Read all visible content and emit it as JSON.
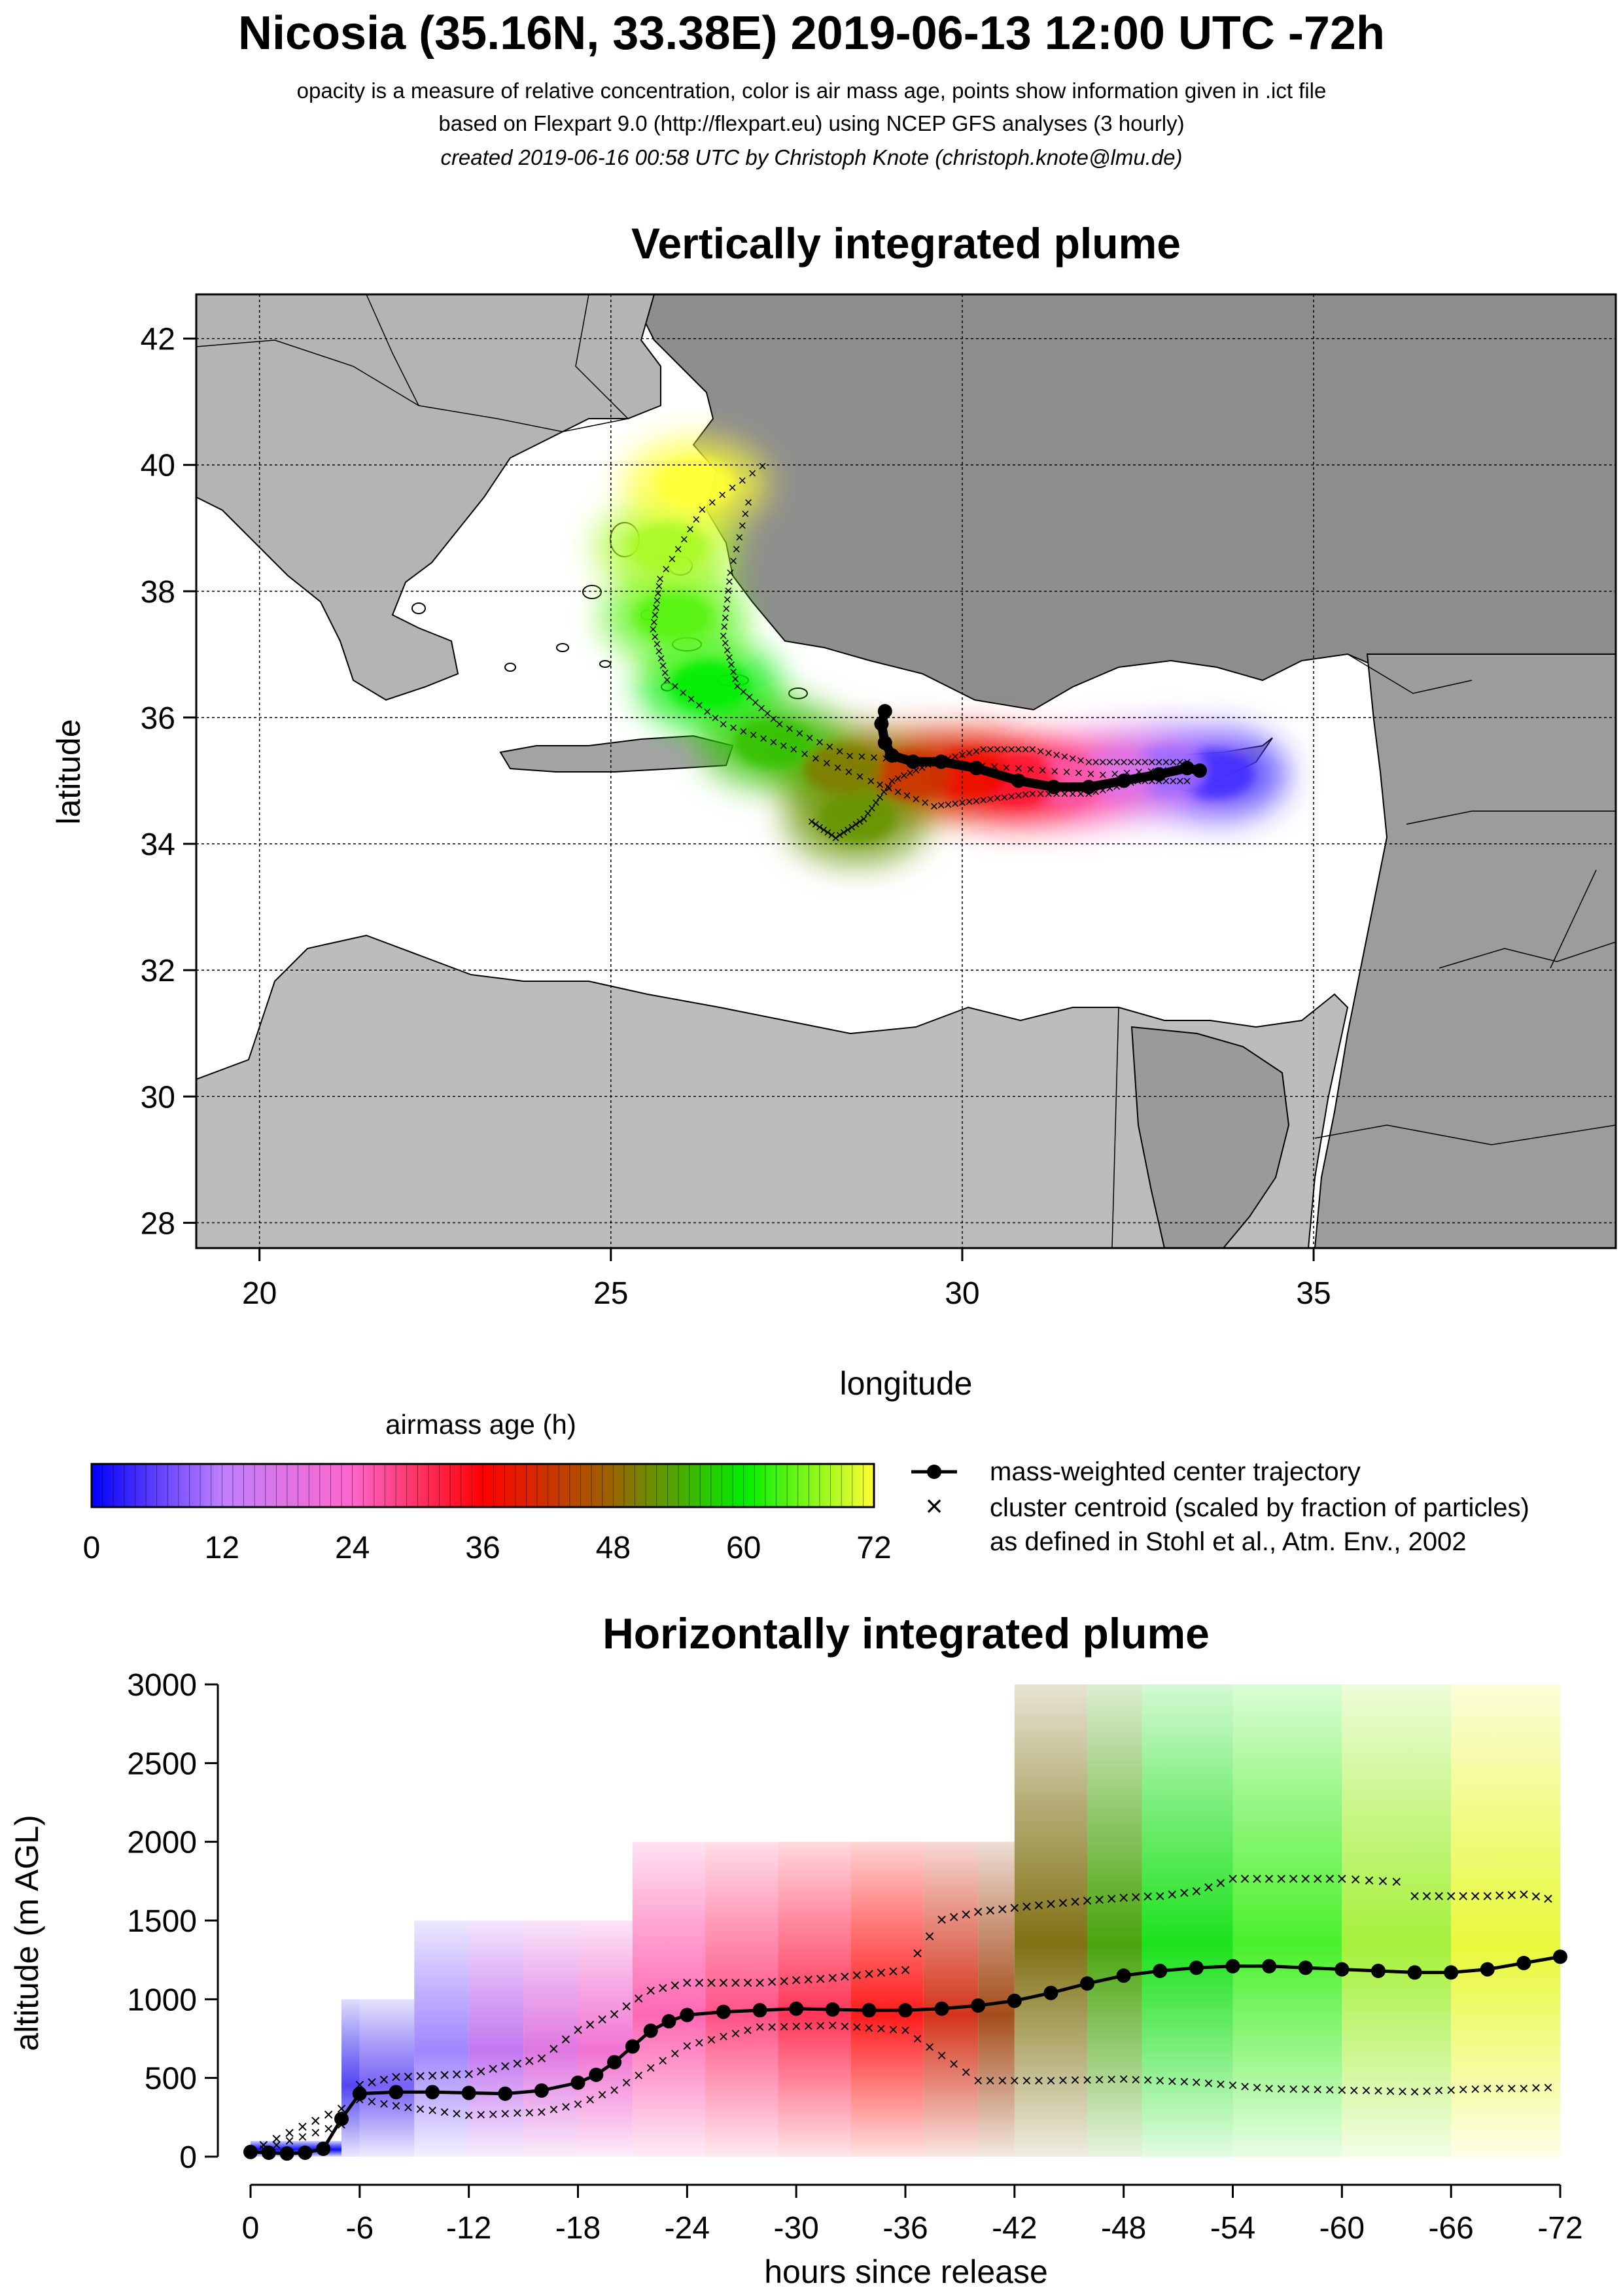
{
  "header": {
    "title": "Nicosia (35.16N, 33.38E) 2019-06-13 12:00 UTC -72h",
    "subtitle1": "opacity is a measure of relative concentration, color is air mass age, points show information given in .ict file",
    "subtitle2": "based on Flexpart 9.0 (http://flexpart.eu) using NCEP GFS analyses (3 hourly)",
    "subtitle3": "created 2019-06-16 00:58 UTC by Christoph Knote (christoph.knote@lmu.de)"
  },
  "legend": {
    "colorbar_title": "airmass age (h)",
    "colorbar_ticks": [
      "0",
      "12",
      "24",
      "36",
      "48",
      "60",
      "72"
    ],
    "colorbar_stops": [
      "#0000ff",
      "#c080ff",
      "#ff66cc",
      "#ff0000",
      "#996600",
      "#00ee00",
      "#ffff33"
    ],
    "line_entry": "mass-weighted center trajectory",
    "cross_entry_1": "cluster centroid (scaled by fraction of particles)",
    "cross_entry_2": "as defined in Stohl et al., Atm. Env., 2002"
  },
  "chart_data": [
    {
      "type": "scatter",
      "title": "Vertically integrated plume",
      "xlabel": "longitude",
      "ylabel": "latitude",
      "xlim": [
        19.1,
        39.3
      ],
      "ylim": [
        27.6,
        42.7
      ],
      "xticks": [
        "20",
        "25",
        "30",
        "35"
      ],
      "yticks": [
        "28",
        "30",
        "32",
        "34",
        "36",
        "38",
        "40",
        "42"
      ],
      "grid": true,
      "center_trajectory": {
        "lon": [
          33.38,
          33.2,
          32.8,
          32.3,
          31.8,
          31.3,
          30.8,
          30.2,
          29.7,
          29.3,
          29.0,
          28.9,
          28.85,
          28.9
        ],
        "lat": [
          35.16,
          35.2,
          35.1,
          35.0,
          34.9,
          34.9,
          35.0,
          35.2,
          35.3,
          35.3,
          35.4,
          35.6,
          35.9,
          36.1
        ]
      },
      "cluster_centroids": [
        {
          "lon": [
            33.2,
            32.5,
            31.8,
            31.0,
            30.3,
            29.6,
            29.0,
            28.6,
            28.2,
            27.8
          ],
          "lat": [
            35.3,
            35.3,
            35.3,
            35.5,
            35.5,
            35.3,
            35.0,
            34.4,
            34.1,
            34.4
          ]
        },
        {
          "lon": [
            33.2,
            32.5,
            31.8,
            31.0,
            30.3,
            29.6,
            28.7,
            27.6,
            26.6,
            25.8,
            25.6,
            25.7,
            26.3,
            27.3
          ],
          "lat": [
            35.0,
            35.0,
            34.8,
            34.8,
            34.7,
            34.6,
            35.0,
            35.5,
            35.9,
            36.6,
            37.4,
            38.2,
            39.3,
            40.1
          ]
        },
        {
          "lon": [
            33.2,
            32.0,
            30.8,
            29.6,
            28.4,
            27.4,
            26.8,
            26.6,
            26.7,
            27.0
          ],
          "lat": [
            35.2,
            35.1,
            35.2,
            35.3,
            35.4,
            35.9,
            36.5,
            37.3,
            38.3,
            39.6
          ]
        }
      ],
      "plume_core": [
        {
          "lon": 33.6,
          "lat": 35.1,
          "age_h": 4
        },
        {
          "lon": 32.9,
          "lat": 35.15,
          "age_h": 10
        },
        {
          "lon": 32.2,
          "lat": 35.1,
          "age_h": 18
        },
        {
          "lon": 31.5,
          "lat": 35.0,
          "age_h": 26
        },
        {
          "lon": 30.8,
          "lat": 35.0,
          "age_h": 33
        },
        {
          "lon": 30.1,
          "lat": 35.1,
          "age_h": 38
        },
        {
          "lon": 29.3,
          "lat": 35.1,
          "age_h": 42
        },
        {
          "lon": 28.3,
          "lat": 35.2,
          "age_h": 50
        },
        {
          "lon": 28.5,
          "lat": 34.4,
          "age_h": 52
        },
        {
          "lon": 27.3,
          "lat": 35.6,
          "age_h": 56
        },
        {
          "lon": 26.4,
          "lat": 36.5,
          "age_h": 60
        },
        {
          "lon": 25.9,
          "lat": 37.6,
          "age_h": 64
        },
        {
          "lon": 25.8,
          "lat": 38.7,
          "age_h": 68
        },
        {
          "lon": 26.2,
          "lat": 39.7,
          "age_h": 72
        }
      ]
    },
    {
      "type": "line",
      "title": "Horizontally integrated plume",
      "xlabel": "hours since release",
      "ylabel": "altitude (m AGL)",
      "xlim": [
        0,
        72
      ],
      "ylim": [
        0,
        3000
      ],
      "xticks": [
        "0",
        "-6",
        "-12",
        "-18",
        "-24",
        "-30",
        "-36",
        "-42",
        "-48",
        "-54",
        "-60",
        "-66",
        "-72"
      ],
      "yticks": [
        "0",
        "500",
        "1000",
        "1500",
        "2000",
        "2500",
        "3000"
      ],
      "center_trajectory": {
        "hours": [
          0,
          1,
          2,
          3,
          4,
          5,
          6,
          8,
          10,
          12,
          14,
          16,
          18,
          19,
          20,
          21,
          22,
          23,
          24,
          26,
          28,
          30,
          32,
          34,
          36,
          38,
          40,
          42,
          44,
          46,
          48,
          50,
          52,
          54,
          56,
          58,
          60,
          62,
          64,
          66,
          68,
          70,
          72
        ],
        "altitude": [
          30,
          25,
          20,
          25,
          50,
          240,
          400,
          410,
          410,
          405,
          400,
          420,
          470,
          520,
          600,
          700,
          800,
          860,
          900,
          920,
          930,
          940,
          935,
          930,
          930,
          940,
          960,
          990,
          1040,
          1100,
          1150,
          1180,
          1200,
          1210,
          1210,
          1200,
          1190,
          1180,
          1170,
          1170,
          1190,
          1230,
          1270
        ]
      },
      "cluster_upper": {
        "hours": [
          0,
          5,
          6,
          8,
          12,
          16,
          18,
          20,
          22,
          24,
          28,
          32,
          36,
          38,
          40,
          44,
          48,
          50,
          52,
          54,
          56,
          60,
          63,
          64,
          66,
          68,
          70,
          72
        ],
        "altitude": [
          30,
          300,
          450,
          500,
          520,
          620,
          800,
          900,
          1050,
          1100,
          1100,
          1130,
          1180,
          1500,
          1550,
          1600,
          1640,
          1650,
          1680,
          1760,
          1760,
          1760,
          1740,
          1650,
          1650,
          1650,
          1660,
          1620
        ]
      },
      "cluster_lower": {
        "hours": [
          0,
          5,
          6,
          8,
          12,
          16,
          18,
          20,
          24,
          28,
          32,
          36,
          40,
          44,
          48,
          52,
          54,
          56,
          60,
          64,
          66,
          68,
          70,
          72
        ],
        "altitude": [
          20,
          200,
          360,
          320,
          260,
          280,
          330,
          420,
          700,
          820,
          830,
          800,
          480,
          480,
          490,
          470,
          450,
          430,
          420,
          410,
          420,
          430,
          430,
          440
        ]
      },
      "bands": [
        {
          "from_h": 0,
          "to_h": 5,
          "alt_top": 100,
          "color": "#0000ff"
        },
        {
          "from_h": 5,
          "to_h": 6,
          "alt_top": 1000,
          "color": "#4a3cf0"
        },
        {
          "from_h": 6,
          "to_h": 9,
          "alt_top": 1000,
          "color": "#6f5af5"
        },
        {
          "from_h": 9,
          "to_h": 12,
          "alt_top": 1500,
          "color": "#9b80ff"
        },
        {
          "from_h": 12,
          "to_h": 15,
          "alt_top": 1500,
          "color": "#c070f0"
        },
        {
          "from_h": 15,
          "to_h": 18,
          "alt_top": 1500,
          "color": "#dd70e0"
        },
        {
          "from_h": 18,
          "to_h": 21,
          "alt_top": 1500,
          "color": "#f06cd0"
        },
        {
          "from_h": 21,
          "to_h": 25,
          "alt_top": 2000,
          "color": "#ff60b0"
        },
        {
          "from_h": 25,
          "to_h": 29,
          "alt_top": 2000,
          "color": "#ff4a80"
        },
        {
          "from_h": 29,
          "to_h": 33,
          "alt_top": 2000,
          "color": "#ff2a50"
        },
        {
          "from_h": 33,
          "to_h": 37,
          "alt_top": 2000,
          "color": "#ff1010"
        },
        {
          "from_h": 37,
          "to_h": 40,
          "alt_top": 2000,
          "color": "#d22a10"
        },
        {
          "from_h": 40,
          "to_h": 42,
          "alt_top": 2000,
          "color": "#a04410"
        },
        {
          "from_h": 42,
          "to_h": 46,
          "alt_top": 3000,
          "color": "#7a6a08"
        },
        {
          "from_h": 46,
          "to_h": 49,
          "alt_top": 3000,
          "color": "#40a000"
        },
        {
          "from_h": 49,
          "to_h": 54,
          "alt_top": 3000,
          "color": "#10e010"
        },
        {
          "from_h": 54,
          "to_h": 60,
          "alt_top": 3000,
          "color": "#40f020"
        },
        {
          "from_h": 60,
          "to_h": 66,
          "alt_top": 3000,
          "color": "#a0f030"
        },
        {
          "from_h": 66,
          "to_h": 72,
          "alt_top": 3000,
          "color": "#e8f830"
        }
      ]
    }
  ]
}
